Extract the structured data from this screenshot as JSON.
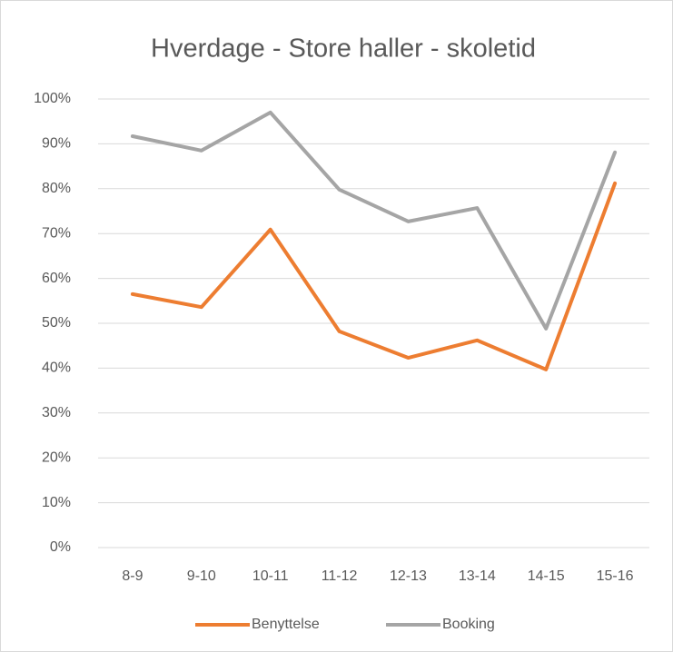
{
  "chart_data": {
    "type": "line",
    "title": "Hverdage - Store haller - skoletid",
    "categories": [
      "8-9",
      "9-10",
      "10-11",
      "11-12",
      "12-13",
      "13-14",
      "14-15",
      "15-16"
    ],
    "series": [
      {
        "name": "Benyttelse",
        "color": "#ED7D31",
        "values": [
          56.5,
          53.6,
          70.9,
          48.2,
          42.3,
          46.2,
          39.7,
          81.2
        ]
      },
      {
        "name": "Booking",
        "color": "#A5A5A5",
        "values": [
          91.7,
          88.5,
          97.0,
          79.8,
          72.7,
          75.7,
          48.8,
          88.1
        ]
      }
    ],
    "ylim": [
      0,
      100
    ],
    "yticks": [
      {
        "value": 0,
        "label": "0%"
      },
      {
        "value": 10,
        "label": "10%"
      },
      {
        "value": 20,
        "label": "20%"
      },
      {
        "value": 30,
        "label": "30%"
      },
      {
        "value": 40,
        "label": "40%"
      },
      {
        "value": 50,
        "label": "50%"
      },
      {
        "value": 60,
        "label": "60%"
      },
      {
        "value": 70,
        "label": "70%"
      },
      {
        "value": 80,
        "label": "80%"
      },
      {
        "value": 90,
        "label": "90%"
      },
      {
        "value": 100,
        "label": "100%"
      }
    ],
    "grid": true,
    "legend": "bottom"
  }
}
